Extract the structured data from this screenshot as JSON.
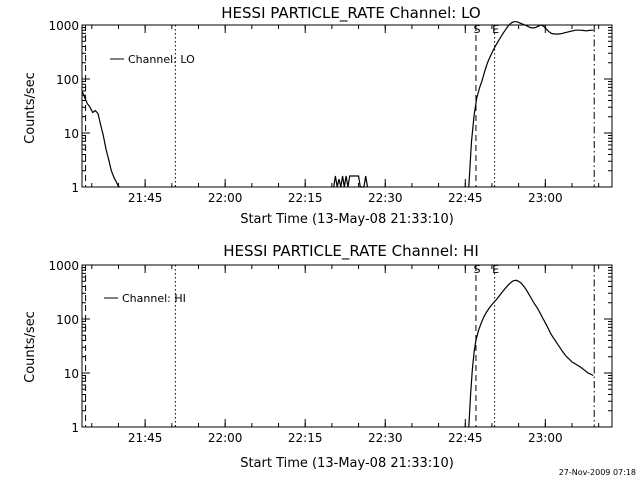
{
  "footer": {
    "timestamp": "27-Nov-2009 07:18"
  },
  "chart_data": [
    {
      "type": "line",
      "title": "HESSI PARTICLE_RATE Channel: LO",
      "xlabel": "Start Time (13-May-08 21:33:10)",
      "ylabel": "Counts/sec",
      "yscale": "log",
      "ylim": [
        1,
        1000
      ],
      "xlim": [
        "21:33:10",
        "23:12:30"
      ],
      "x_ticks": [
        "21:45",
        "22:00",
        "22:15",
        "22:30",
        "22:45",
        "23:00"
      ],
      "y_ticks": [
        "1",
        "10",
        "100",
        "1000"
      ],
      "legend": "Channel: LO",
      "markers": [
        {
          "label": "S",
          "time": "22:47:00",
          "style": "dashed"
        },
        {
          "label": "E",
          "time": "22:50:30",
          "style": "dotted"
        }
      ],
      "vlines": [
        {
          "time": "21:33:50",
          "style": "dashed"
        },
        {
          "time": "21:50:40",
          "style": "dotted"
        },
        {
          "time": "23:09:10",
          "style": "dashdot"
        }
      ],
      "series": [
        {
          "name": "Channel: LO",
          "segments": [
            {
              "x": [
                "21:33:10",
                "21:33:40",
                "21:34:10",
                "21:34:40",
                "21:35:10",
                "21:35:40",
                "21:36:10",
                "21:36:40",
                "21:37:10",
                "21:37:40",
                "21:38:10",
                "21:38:40",
                "21:39:10",
                "21:39:40",
                "21:40:00",
                "21:40:20"
              ],
              "y": [
                60,
                45,
                35,
                30,
                24,
                26,
                23,
                14,
                9,
                5,
                3.2,
                2,
                1.5,
                1.2,
                1.02,
                1
              ]
            },
            {
              "x": [
                "22:20:20",
                "22:20:40",
                "22:21:00",
                "22:21:20",
                "22:21:40",
                "22:22:00",
                "22:22:20",
                "22:22:40",
                "22:23:00",
                "22:23:20",
                "22:23:40",
                "22:24:00",
                "22:24:20",
                "22:24:40",
                "22:25:00",
                "22:25:20",
                "22:25:40",
                "22:26:00",
                "22:26:20",
                "22:26:40"
              ],
              "y": [
                1,
                1.6,
                1,
                1.4,
                1,
                1.6,
                1,
                1.6,
                1,
                1.6,
                1.6,
                1.6,
                1.6,
                1.6,
                1.6,
                1,
                1,
                1,
                1.6,
                1
              ]
            },
            {
              "x": [
                "22:45:40",
                "22:46:10",
                "22:46:40",
                "22:47:10",
                "22:47:40",
                "22:48:10",
                "22:48:40",
                "22:49:10",
                "22:49:40",
                "22:50:10",
                "22:50:40",
                "22:51:10",
                "22:51:40",
                "22:52:10",
                "22:52:40",
                "22:53:10",
                "22:53:40",
                "22:54:10",
                "22:54:40",
                "22:55:10",
                "22:55:40",
                "22:56:10",
                "22:56:40",
                "22:57:10",
                "22:57:40",
                "22:58:10",
                "22:58:40",
                "22:59:10",
                "22:59:40",
                "23:00:10",
                "23:00:40",
                "23:01:10",
                "23:01:40",
                "23:02:10",
                "23:02:40",
                "23:03:10",
                "23:03:40",
                "23:04:10",
                "23:04:40",
                "23:05:10",
                "23:05:40",
                "23:06:10",
                "23:06:40",
                "23:07:10",
                "23:07:40",
                "23:08:10",
                "23:08:40",
                "23:09:00"
              ],
              "y": [
                1,
                7,
                22,
                45,
                68,
                95,
                140,
                200,
                260,
                330,
                410,
                500,
                600,
                720,
                850,
                1000,
                1100,
                1150,
                1150,
                1100,
                1050,
                1000,
                950,
                900,
                880,
                900,
                950,
                1000,
                950,
                850,
                750,
                700,
                680,
                680,
                680,
                700,
                720,
                740,
                760,
                780,
                800,
                800,
                800,
                790,
                780,
                790,
                800,
                800
              ]
            }
          ]
        }
      ]
    },
    {
      "type": "line",
      "title": "HESSI PARTICLE_RATE Channel: HI",
      "xlabel": "Start Time (13-May-08 21:33:10)",
      "ylabel": "Counts/sec",
      "yscale": "log",
      "ylim": [
        1,
        1000
      ],
      "xlim": [
        "21:33:10",
        "23:12:30"
      ],
      "x_ticks": [
        "21:45",
        "22:00",
        "22:15",
        "22:30",
        "22:45",
        "23:00"
      ],
      "y_ticks": [
        "1",
        "10",
        "100",
        "1000"
      ],
      "legend": "Channel: HI",
      "markers": [
        {
          "label": "S",
          "time": "22:47:00",
          "style": "dashed"
        },
        {
          "label": "E",
          "time": "22:50:30",
          "style": "dotted"
        }
      ],
      "vlines": [
        {
          "time": "21:33:50",
          "style": "dashed"
        },
        {
          "time": "21:50:40",
          "style": "dotted"
        },
        {
          "time": "23:09:10",
          "style": "dashdot"
        }
      ],
      "series": [
        {
          "name": "Channel: HI",
          "segments": [
            {
              "x": [
                "22:45:40",
                "22:46:00",
                "22:46:20",
                "22:46:40",
                "22:47:00",
                "22:47:30",
                "22:48:00",
                "22:48:30",
                "22:49:00",
                "22:49:30",
                "22:50:00",
                "22:50:30",
                "22:51:00",
                "22:51:30",
                "22:52:00",
                "22:52:30",
                "22:53:00",
                "22:53:30",
                "22:54:00",
                "22:54:30",
                "22:55:00",
                "22:55:30",
                "22:56:00",
                "22:56:30",
                "22:57:00",
                "22:57:30",
                "22:58:00",
                "22:58:30",
                "22:59:00",
                "22:59:30",
                "23:00:00",
                "23:00:30",
                "23:01:00",
                "23:01:30",
                "23:02:00",
                "23:02:30",
                "23:03:00",
                "23:03:30",
                "23:04:00",
                "23:04:30",
                "23:05:00",
                "23:05:30",
                "23:06:00",
                "23:06:30",
                "23:07:00",
                "23:07:30",
                "23:08:00",
                "23:08:30",
                "23:09:00"
              ],
              "y": [
                1,
                4,
                12,
                25,
                40,
                62,
                85,
                110,
                135,
                160,
                185,
                210,
                240,
                280,
                320,
                370,
                420,
                470,
                510,
                520,
                500,
                460,
                400,
                340,
                280,
                230,
                190,
                160,
                130,
                105,
                85,
                68,
                54,
                45,
                38,
                32,
                27,
                23,
                20,
                18,
                16,
                15,
                14,
                13,
                12,
                11,
                10,
                9.5,
                9
              ]
            }
          ]
        }
      ]
    }
  ]
}
